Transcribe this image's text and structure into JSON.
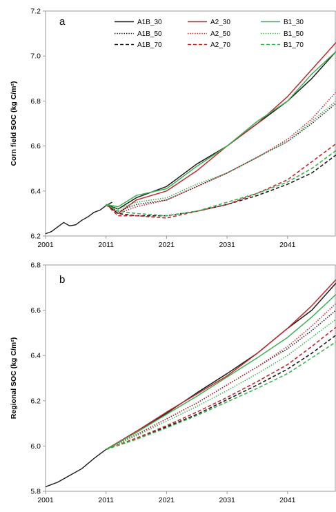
{
  "chart_data": [
    {
      "type": "line",
      "panel_label": "a",
      "ylabel": "Corn field SOC (kg C/m²)",
      "xlim": [
        2001,
        2049
      ],
      "ylim": [
        6.2,
        7.2
      ],
      "x_ticks": [
        "2001",
        "2011",
        "2021",
        "2031",
        "2041"
      ],
      "y_ticks": [
        "6.2",
        "6.4",
        "6.6",
        "6.8",
        "7.0",
        "7.2"
      ],
      "grid": false,
      "legend_position": "top-center",
      "colors": {
        "A1B": "#1a1a1a",
        "A2": "#c0262d",
        "B1": "#3cb050"
      },
      "historical": {
        "name": "",
        "x": [
          2001,
          2002,
          2003,
          2004,
          2005,
          2006,
          2007,
          2008,
          2009,
          2010,
          2011,
          2012
        ],
        "values": [
          6.21,
          6.22,
          6.24,
          6.26,
          6.245,
          6.25,
          6.27,
          6.285,
          6.305,
          6.315,
          6.335,
          6.35
        ]
      },
      "series": [
        {
          "name": "A1B_30",
          "scenario": "A1B",
          "style": "solid",
          "x": [
            2011,
            2013,
            2016,
            2021,
            2026,
            2031,
            2036,
            2041,
            2045,
            2049
          ],
          "values": [
            6.34,
            6.32,
            6.37,
            6.42,
            6.52,
            6.6,
            6.7,
            6.8,
            6.9,
            7.02
          ]
        },
        {
          "name": "A2_30",
          "scenario": "A2",
          "style": "solid",
          "x": [
            2011,
            2013,
            2016,
            2021,
            2026,
            2031,
            2036,
            2041,
            2045,
            2049
          ],
          "values": [
            6.34,
            6.3,
            6.36,
            6.4,
            6.49,
            6.6,
            6.7,
            6.82,
            6.94,
            7.06
          ]
        },
        {
          "name": "B1_30",
          "scenario": "B1",
          "style": "solid",
          "x": [
            2011,
            2013,
            2016,
            2021,
            2026,
            2031,
            2036,
            2041,
            2045,
            2049
          ],
          "values": [
            6.34,
            6.33,
            6.38,
            6.41,
            6.51,
            6.6,
            6.71,
            6.8,
            6.92,
            7.02
          ]
        },
        {
          "name": "A1B_50",
          "scenario": "A1B",
          "style": "dotted",
          "x": [
            2011,
            2013,
            2016,
            2021,
            2026,
            2031,
            2036,
            2041,
            2045,
            2049
          ],
          "values": [
            6.34,
            6.31,
            6.34,
            6.36,
            6.42,
            6.48,
            6.55,
            6.62,
            6.7,
            6.79
          ]
        },
        {
          "name": "A2_50",
          "scenario": "A2",
          "style": "dotted",
          "x": [
            2011,
            2013,
            2016,
            2021,
            2026,
            2031,
            2036,
            2041,
            2045,
            2049
          ],
          "values": [
            6.34,
            6.3,
            6.33,
            6.36,
            6.42,
            6.48,
            6.55,
            6.63,
            6.72,
            6.84
          ]
        },
        {
          "name": "B1_50",
          "scenario": "B1",
          "style": "dotted",
          "x": [
            2011,
            2013,
            2016,
            2021,
            2026,
            2031,
            2036,
            2041,
            2045,
            2049
          ],
          "values": [
            6.34,
            6.32,
            6.35,
            6.37,
            6.43,
            6.48,
            6.55,
            6.62,
            6.71,
            6.8
          ]
        },
        {
          "name": "A1B_70",
          "scenario": "A1B",
          "style": "dashed",
          "x": [
            2011,
            2013,
            2016,
            2021,
            2026,
            2031,
            2036,
            2041,
            2045,
            2049
          ],
          "values": [
            6.34,
            6.3,
            6.29,
            6.29,
            6.31,
            6.34,
            6.38,
            6.43,
            6.48,
            6.56
          ]
        },
        {
          "name": "A2_70",
          "scenario": "A2",
          "style": "dashed",
          "x": [
            2011,
            2013,
            2016,
            2021,
            2026,
            2031,
            2036,
            2041,
            2045,
            2049
          ],
          "values": [
            6.34,
            6.29,
            6.29,
            6.28,
            6.31,
            6.34,
            6.39,
            6.45,
            6.53,
            6.61
          ]
        },
        {
          "name": "B1_70",
          "scenario": "B1",
          "style": "dashed",
          "x": [
            2011,
            2013,
            2016,
            2021,
            2026,
            2031,
            2036,
            2041,
            2045,
            2049
          ],
          "values": [
            6.34,
            6.31,
            6.3,
            6.29,
            6.31,
            6.35,
            6.39,
            6.44,
            6.5,
            6.58
          ]
        }
      ]
    },
    {
      "type": "line",
      "panel_label": "b",
      "ylabel": "Regional SOC (kg C/m²)",
      "xlim": [
        2001,
        2049
      ],
      "ylim": [
        5.8,
        6.8
      ],
      "x_ticks": [
        "2001",
        "2011",
        "2021",
        "2031",
        "2041"
      ],
      "y_ticks": [
        "5.8",
        "6.0",
        "6.2",
        "6.4",
        "6.6",
        "6.8"
      ],
      "grid": false,
      "colors": {
        "A1B": "#1a1a1a",
        "A2": "#c0262d",
        "B1": "#3cb050"
      },
      "historical": {
        "name": "",
        "x": [
          2001,
          2003,
          2005,
          2007,
          2009,
          2011
        ],
        "values": [
          5.82,
          5.84,
          5.87,
          5.9,
          5.945,
          5.985
        ]
      },
      "series": [
        {
          "name": "A1B_30",
          "scenario": "A1B",
          "style": "solid",
          "x": [
            2011,
            2016,
            2021,
            2026,
            2031,
            2036,
            2041,
            2045,
            2049
          ],
          "values": [
            5.985,
            6.06,
            6.145,
            6.235,
            6.32,
            6.41,
            6.52,
            6.6,
            6.72
          ]
        },
        {
          "name": "A2_30",
          "scenario": "A2",
          "style": "solid",
          "x": [
            2011,
            2016,
            2021,
            2026,
            2031,
            2036,
            2041,
            2045,
            2049
          ],
          "values": [
            5.985,
            6.065,
            6.15,
            6.23,
            6.31,
            6.41,
            6.52,
            6.62,
            6.735
          ]
        },
        {
          "name": "B1_30",
          "scenario": "B1",
          "style": "solid",
          "x": [
            2011,
            2016,
            2021,
            2026,
            2031,
            2036,
            2041,
            2045,
            2049
          ],
          "values": [
            5.985,
            6.06,
            6.14,
            6.22,
            6.305,
            6.39,
            6.48,
            6.57,
            6.67
          ]
        },
        {
          "name": "A1B_50",
          "scenario": "A1B",
          "style": "dotted",
          "x": [
            2011,
            2016,
            2021,
            2026,
            2031,
            2036,
            2041,
            2045,
            2049
          ],
          "values": [
            5.985,
            6.05,
            6.12,
            6.19,
            6.27,
            6.35,
            6.43,
            6.51,
            6.6
          ]
        },
        {
          "name": "A2_50",
          "scenario": "A2",
          "style": "dotted",
          "x": [
            2011,
            2016,
            2021,
            2026,
            2031,
            2036,
            2041,
            2045,
            2049
          ],
          "values": [
            5.985,
            6.05,
            6.12,
            6.19,
            6.27,
            6.35,
            6.44,
            6.53,
            6.63
          ]
        },
        {
          "name": "B1_50",
          "scenario": "B1",
          "style": "dotted",
          "x": [
            2011,
            2016,
            2021,
            2026,
            2031,
            2036,
            2041,
            2045,
            2049
          ],
          "values": [
            5.985,
            6.045,
            6.11,
            6.175,
            6.245,
            6.32,
            6.4,
            6.48,
            6.56
          ]
        },
        {
          "name": "A1B_70",
          "scenario": "A1B",
          "style": "dashed",
          "x": [
            2011,
            2016,
            2021,
            2026,
            2031,
            2036,
            2041,
            2045,
            2049
          ],
          "values": [
            5.985,
            6.03,
            6.085,
            6.14,
            6.205,
            6.27,
            6.34,
            6.41,
            6.49
          ]
        },
        {
          "name": "A2_70",
          "scenario": "A2",
          "style": "dashed",
          "x": [
            2011,
            2016,
            2021,
            2026,
            2031,
            2036,
            2041,
            2045,
            2049
          ],
          "values": [
            5.985,
            6.035,
            6.09,
            6.15,
            6.215,
            6.285,
            6.36,
            6.44,
            6.525
          ]
        },
        {
          "name": "B1_70",
          "scenario": "B1",
          "style": "dashed",
          "x": [
            2011,
            2016,
            2021,
            2026,
            2031,
            2036,
            2041,
            2045,
            2049
          ],
          "values": [
            5.985,
            6.03,
            6.08,
            6.135,
            6.195,
            6.255,
            6.32,
            6.39,
            6.46
          ]
        }
      ]
    }
  ]
}
